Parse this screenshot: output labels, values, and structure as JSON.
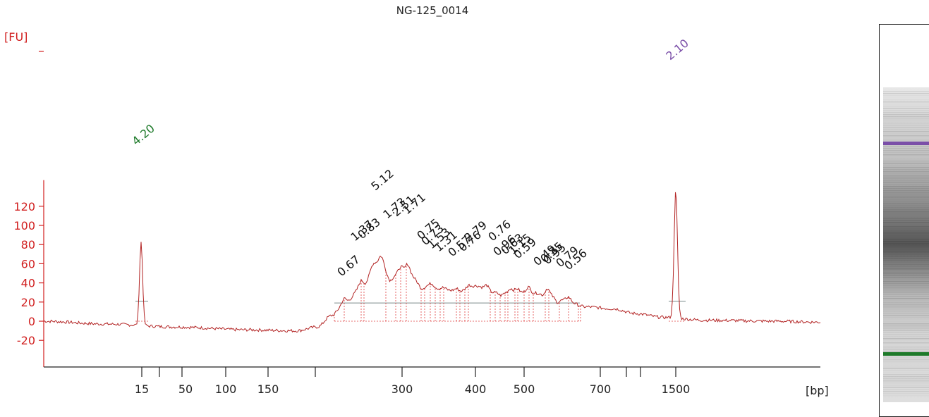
{
  "chart_data": {
    "type": "line",
    "title": "NG-125_0014",
    "ylabel": "[FU]",
    "xlabel": "[bp]",
    "ylim": [
      -25,
      145
    ],
    "yticks": [
      -20,
      0,
      20,
      40,
      60,
      80,
      100,
      120
    ],
    "xtick_labels": [
      "15",
      "50",
      "100",
      "150",
      "300",
      "400",
      "500",
      "700",
      "1500"
    ],
    "grid": false,
    "series_color": "#b22222",
    "axis_color": "#d12020",
    "marker_peaks": [
      {
        "label": "4.20",
        "position": "15",
        "height": 87,
        "color": "#1e7a2a",
        "marker": "lower"
      },
      {
        "label": "2.10",
        "position": "1500",
        "height": 133,
        "color": "#7b4fa8",
        "marker": "upper"
      }
    ],
    "sample_peak_labels": [
      "0.67",
      "1.37",
      "0.83",
      "5.12",
      "1.73",
      "2.51",
      "1.71",
      "0.75",
      "0.73",
      "1.53",
      "1.31",
      "0.57",
      "0.76",
      "2.79",
      "0.76",
      "0.96",
      "0.63",
      "1.15",
      "0.59",
      "0.49",
      "0.35",
      "0.95",
      "0.79",
      "0.56"
    ],
    "gel_band_colors": {
      "upper": "#7b4fa8",
      "lower": "#1e7a2a"
    }
  }
}
